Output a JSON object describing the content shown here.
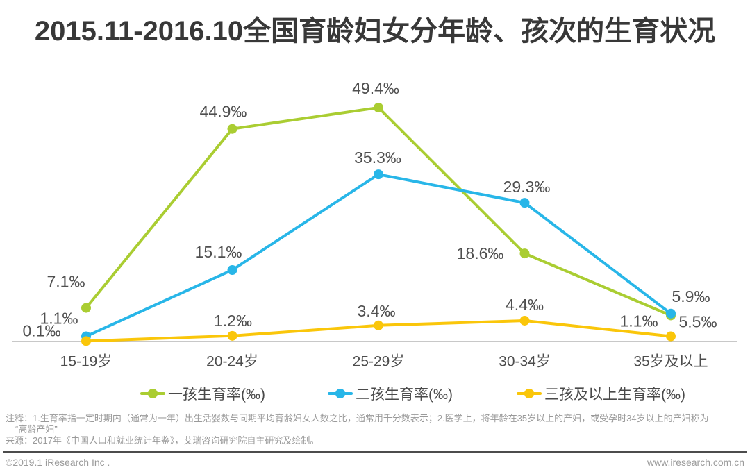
{
  "title": "2015.11-2016.10全国育龄妇女分年龄、孩次的生育状况",
  "chart_data": {
    "type": "line",
    "title": "2015.11-2016.10全国育龄妇女分年龄、孩次的生育状况",
    "unit": "‰",
    "categories": [
      "15-19岁",
      "20-24岁",
      "25-29岁",
      "30-34岁",
      "35岁及以上"
    ],
    "series": [
      {
        "name": "一孩生育率(‰)",
        "color": "#aacd32",
        "values": [
          7.1,
          44.9,
          49.4,
          18.6,
          5.5
        ],
        "labels": [
          "7.1‰",
          "44.9‰",
          "49.4‰",
          "18.6‰",
          "5.5‰"
        ],
        "label_offsets": [
          [
            -29,
            -38
          ],
          [
            -13,
            -25
          ],
          [
            -4,
            -28
          ],
          [
            -64,
            0
          ],
          [
            39,
            9
          ]
        ]
      },
      {
        "name": "二孩生育率(‰)",
        "color": "#28b6e8",
        "values": [
          1.1,
          15.1,
          35.3,
          29.3,
          5.9
        ],
        "labels": [
          "1.1‰",
          "15.1‰",
          "35.3‰",
          "29.3‰",
          "5.9‰"
        ],
        "label_offsets": [
          [
            -39,
            -26
          ],
          [
            -20,
            -26
          ],
          [
            -1,
            -24
          ],
          [
            3,
            -23
          ],
          [
            29,
            -25
          ]
        ]
      },
      {
        "name": "三孩及以上生育率(‰)",
        "color": "#fac60a",
        "values": [
          0.1,
          1.2,
          3.4,
          4.4,
          1.1
        ],
        "labels": [
          "0.1‰",
          "1.2‰",
          "3.4‰",
          "4.4‰",
          "1.1‰"
        ],
        "label_offsets": [
          [
            -64,
            -15
          ],
          [
            1,
            -22
          ],
          [
            -3,
            -21
          ],
          [
            0,
            -23
          ],
          [
            -46,
            -22
          ]
        ]
      }
    ],
    "ylim": [
      0,
      55
    ],
    "xlabel": "",
    "ylabel": "",
    "grid": false,
    "legend_position": "bottom"
  },
  "notes": {
    "line1": "注释：1.生育率指一定时期内（通常为一年）出生活婴数与同期平均育龄妇女人数之比，通常用千分数表示；2.医学上，将年龄在35岁以上的产妇，或受孕时34岁以上的产妇称为",
    "line2": "“高龄产妇”",
    "line3": "来源：2017年《中国人口和就业统计年鉴》，艾瑞咨询研究院自主研究及绘制。"
  },
  "footer": {
    "left": "©2019.1 iResearch Inc .",
    "right": "www.iresearch.com.cn"
  }
}
